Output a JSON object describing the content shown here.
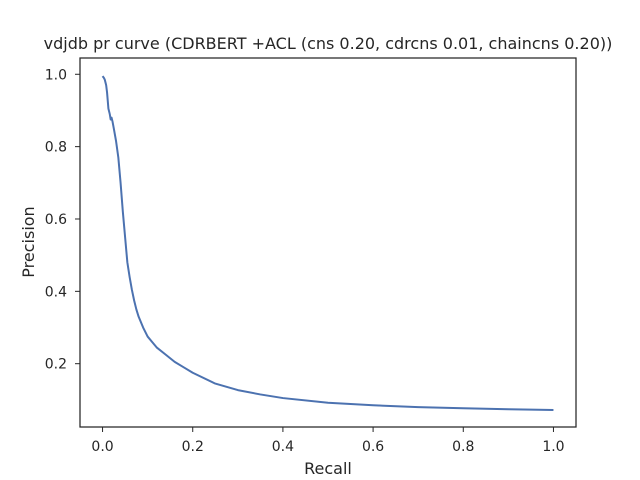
{
  "chart_data": {
    "type": "line",
    "title": "vdjdb pr curve (CDRBERT +ACL (cns 0.20, cdrcns 0.01, chaincns 0.20))",
    "xlabel": "Recall",
    "ylabel": "Precision",
    "xlim": [
      -0.05,
      1.05
    ],
    "ylim": [
      0.025,
      1.045
    ],
    "xticks": [
      0.0,
      0.2,
      0.4,
      0.6,
      0.8,
      1.0
    ],
    "xtick_labels": [
      "0.0",
      "0.2",
      "0.4",
      "0.6",
      "0.8",
      "1.0"
    ],
    "yticks": [
      0.2,
      0.4,
      0.6,
      0.8,
      1.0
    ],
    "ytick_labels": [
      "0.2",
      "0.4",
      "0.6",
      "0.8",
      "1.0"
    ],
    "grid": false,
    "legend": "none",
    "line_color": "#4c72b0",
    "series": [
      {
        "x": [
          0.0,
          0.003,
          0.005,
          0.008,
          0.01,
          0.013,
          0.016,
          0.018,
          0.02,
          0.022,
          0.025,
          0.03,
          0.035,
          0.04,
          0.045,
          0.05,
          0.055,
          0.06,
          0.065,
          0.07,
          0.075,
          0.08,
          0.09,
          0.1,
          0.11,
          0.12,
          0.14,
          0.16,
          0.18,
          0.2,
          0.25,
          0.3,
          0.35,
          0.4,
          0.5,
          0.6,
          0.7,
          0.8,
          0.9,
          1.0
        ],
        "y": [
          0.995,
          0.99,
          0.985,
          0.97,
          0.95,
          0.905,
          0.89,
          0.875,
          0.88,
          0.87,
          0.85,
          0.815,
          0.77,
          0.7,
          0.62,
          0.55,
          0.48,
          0.44,
          0.405,
          0.375,
          0.35,
          0.33,
          0.3,
          0.275,
          0.26,
          0.245,
          0.225,
          0.205,
          0.19,
          0.175,
          0.145,
          0.127,
          0.115,
          0.105,
          0.092,
          0.085,
          0.08,
          0.077,
          0.074,
          0.072
        ]
      }
    ]
  }
}
